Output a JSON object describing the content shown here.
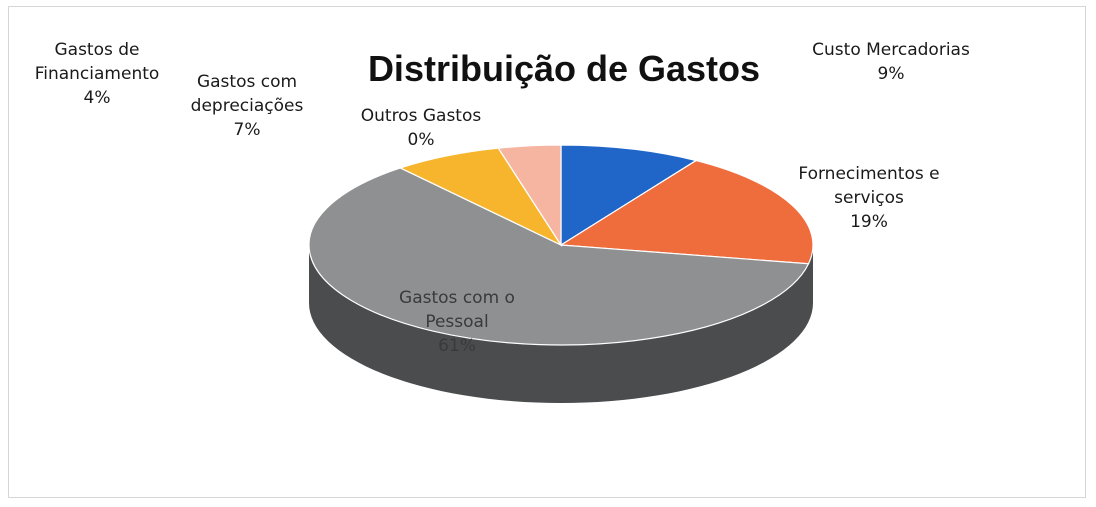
{
  "chart_data": {
    "type": "pie",
    "style": "3d",
    "title": "Distribuição de Gastos",
    "slices": [
      {
        "label": [
          "Custo Mercadorias"
        ],
        "value": 9,
        "value_label": "9%",
        "color": "#1f66c8"
      },
      {
        "label": [
          "Fornecimentos e",
          "serviços"
        ],
        "value": 19,
        "value_label": "19%",
        "color": "#ef6c3c"
      },
      {
        "label": [
          "Gastos com o",
          "Pessoal"
        ],
        "value": 61,
        "value_label": "61%",
        "color": "#8f9091"
      },
      {
        "label": [
          "Gastos com",
          "depreciações"
        ],
        "value": 7,
        "value_label": "7%",
        "color": "#f7b52d"
      },
      {
        "label": [
          "Gastos de",
          "Financiamento"
        ],
        "value": 4,
        "value_label": "4%",
        "color": "#f6b5a0"
      },
      {
        "label": [
          "Outros Gastos"
        ],
        "value": 0,
        "value_label": "0%",
        "color": "#6b8fd6"
      }
    ],
    "legend": "none",
    "side_color": "#4a4c4e"
  }
}
